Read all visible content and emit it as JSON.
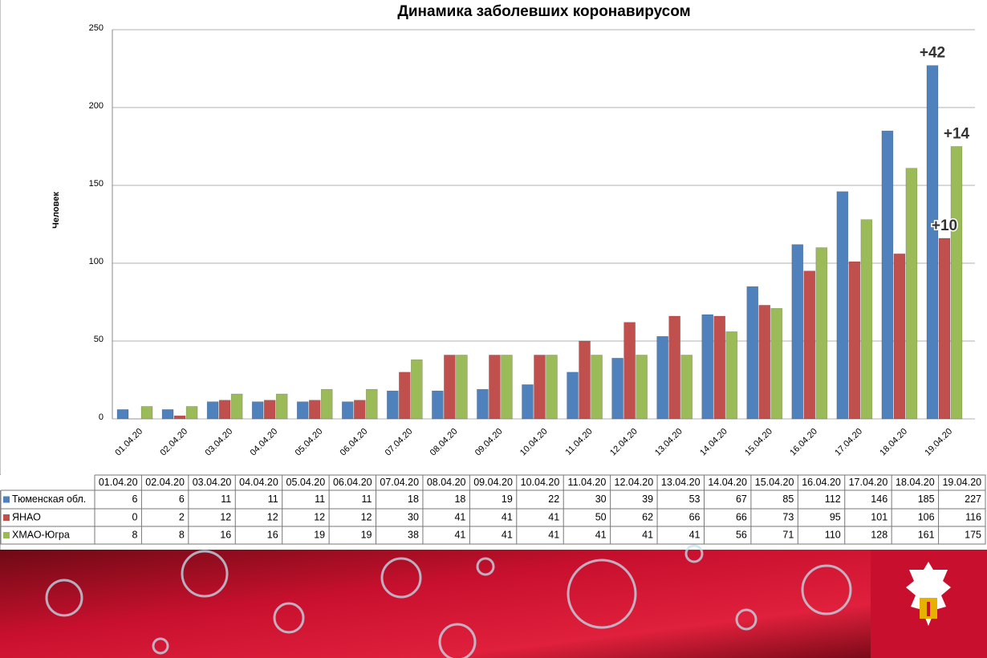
{
  "chart_data": {
    "type": "bar",
    "title": "Динамика заболевших коронавирусом",
    "y_label": "Человек",
    "categories": [
      "01.04.20",
      "02.04.20",
      "03.04.20",
      "04.04.20",
      "05.04.20",
      "06.04.20",
      "07.04.20",
      "08.04.20",
      "09.04.20",
      "10.04.20",
      "11.04.20",
      "12.04.20",
      "13.04.20",
      "14.04.20",
      "15.04.20",
      "16.04.20",
      "17.04.20",
      "18.04.20",
      "19.04.20"
    ],
    "series": [
      {
        "name": "Тюменская обл.",
        "color": "#4f81bd",
        "values": [
          6,
          6,
          11,
          11,
          11,
          11,
          18,
          18,
          19,
          22,
          30,
          39,
          53,
          67,
          85,
          112,
          146,
          185,
          227
        ]
      },
      {
        "name": "ЯНАО",
        "color": "#c0504d",
        "values": [
          0,
          2,
          12,
          12,
          12,
          12,
          30,
          41,
          41,
          41,
          50,
          62,
          66,
          66,
          73,
          95,
          101,
          106,
          116
        ]
      },
      {
        "name": "ХМАО-Югра",
        "color": "#9bbb59",
        "values": [
          8,
          8,
          16,
          16,
          19,
          19,
          38,
          41,
          41,
          41,
          41,
          41,
          41,
          56,
          71,
          110,
          128,
          161,
          175
        ]
      }
    ],
    "annotations": [
      "+42",
      "+14",
      "+10"
    ],
    "ylim": [
      0,
      250
    ],
    "yticks": [
      0,
      50,
      100,
      150,
      200,
      250
    ],
    "grid": true
  }
}
